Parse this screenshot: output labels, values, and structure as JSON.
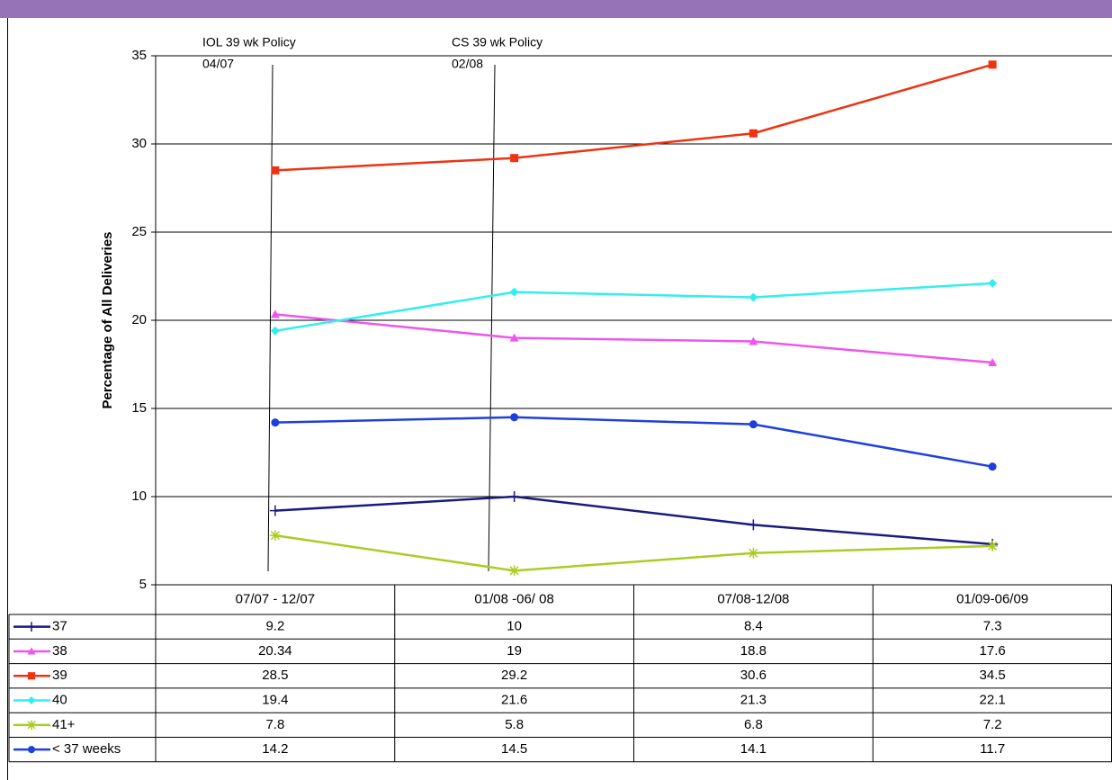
{
  "chart_data": {
    "type": "line",
    "y_label": "Percentage of All Deliveries",
    "categories": [
      "07/07 - 12/07",
      "01/08 -06/ 08",
      "07/08-12/08",
      "01/09-06/09"
    ],
    "series": [
      {
        "name": "37",
        "color": "#1a1a80",
        "marker": "plus",
        "values": [
          9.2,
          10,
          8.4,
          7.3
        ]
      },
      {
        "name": "38",
        "color": "#ee55ee",
        "marker": "triangle",
        "values": [
          20.34,
          19,
          18.8,
          17.6
        ]
      },
      {
        "name": "39",
        "color": "#ee3311",
        "marker": "square",
        "values": [
          28.5,
          29.2,
          30.6,
          34.5
        ]
      },
      {
        "name": "40",
        "color": "#33eeee",
        "marker": "diamond",
        "values": [
          19.4,
          21.6,
          21.3,
          22.1
        ]
      },
      {
        "name": "41+",
        "color": "#aacc22",
        "marker": "asterisk",
        "values": [
          7.8,
          5.8,
          6.8,
          7.2
        ]
      },
      {
        "name": "< 37 weeks",
        "color": "#1f3fdd",
        "marker": "circle",
        "values": [
          14.2,
          14.5,
          14.1,
          11.7
        ]
      }
    ],
    "annotations": [
      {
        "title": "IOL 39 wk Policy",
        "date": "04/07"
      },
      {
        "title": "CS 39 wk Policy",
        "date": "02/08"
      }
    ],
    "ylim": [
      5,
      35
    ],
    "yticks": [
      5,
      10,
      15,
      20,
      25,
      30,
      35
    ],
    "grid": true
  }
}
